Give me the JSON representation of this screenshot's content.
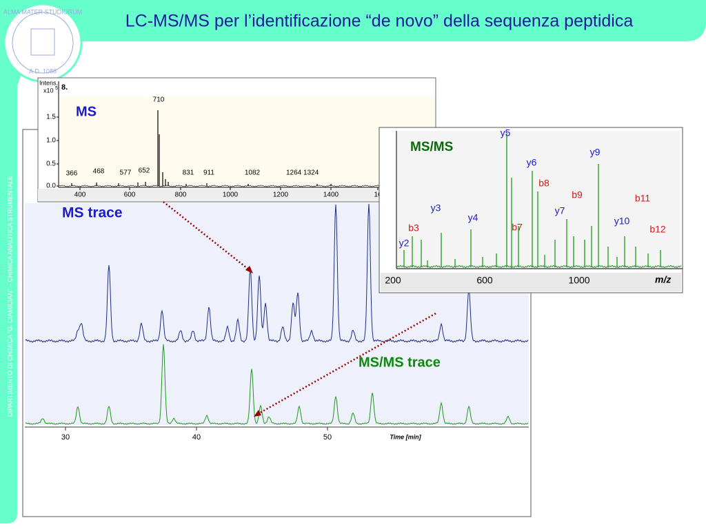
{
  "header": {
    "title": "LC-MS/MS per l’identificazione “de novo” della sequenza peptidica",
    "logo": "ALMA MATER STUDIORUM",
    "logo_year": "A.D. 1088"
  },
  "sidebar": "DIPARTIMENTO DI CHIMICA “G. CIAMICIAN” – CHIMICA ANALITICA STRUMENTALE",
  "ms": {
    "label": "MS",
    "intens": "Intens.",
    "scale": "x10",
    "scale_exp": "5",
    "box": "8.",
    "yticks": [
      "1.5",
      "1.0",
      "0.5",
      "0.0"
    ],
    "xticks": [
      "400",
      "600",
      "800",
      "1000",
      "1200",
      "1400",
      "16"
    ],
    "peaks": [
      "710",
      "366",
      "468",
      "577",
      "652",
      "831",
      "911",
      "1082",
      "1264 1324"
    ]
  },
  "msms": {
    "label": "MS/MS",
    "xticks": [
      "200",
      "600",
      "1000"
    ],
    "xlabel": "m/z",
    "ions": [
      "y5",
      "y6",
      "b8",
      "y9",
      "b9",
      "b11",
      "y3",
      "y4",
      "y7",
      "y10",
      "b3",
      "b7",
      "b12",
      "y2"
    ]
  },
  "traces": {
    "ms_label": "MS trace",
    "msms_label": "MS/MS trace",
    "xticks": [
      "30",
      "40",
      "50"
    ],
    "xlabel": "Time [min]"
  }
}
